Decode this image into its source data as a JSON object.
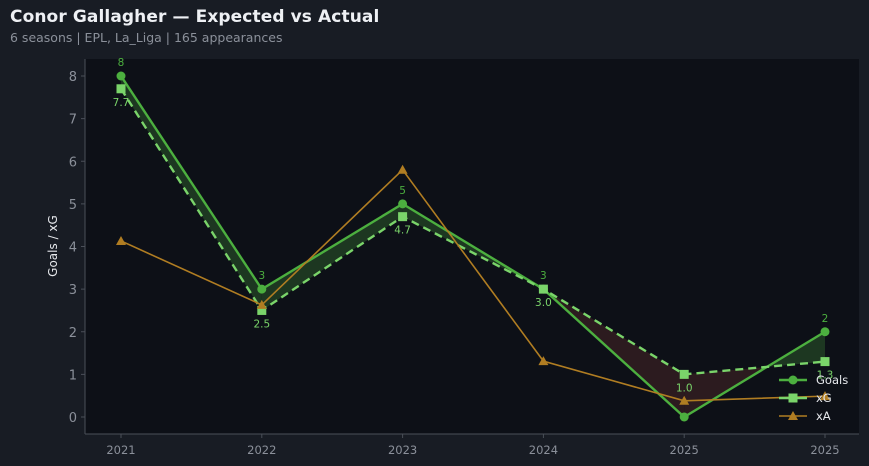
{
  "header": {
    "title": "Conor Gallagher — Expected vs Actual",
    "subtitle": "6 seasons | EPL, La_Liga | 165 appearances"
  },
  "colors": {
    "background": "#181c24",
    "plot_background": "#0d1017",
    "goals": "#4caf3f",
    "xg": "#7ad46a",
    "xa": "#b07d22",
    "fill_over": "#1f3a22",
    "fill_under": "#2e1c20",
    "axis": "#4a4f58",
    "tick_text": "#8b909a"
  },
  "chart_data": {
    "type": "line",
    "title": "Conor Gallagher — Expected vs Actual",
    "subtitle": "6 seasons | EPL, La_Liga | 165 appearances",
    "xlabel": "",
    "ylabel": "Goals / xG",
    "categories": [
      "2021",
      "2022",
      "2023",
      "2024",
      "2025",
      "2025"
    ],
    "ylim": [
      -0.4,
      8.4
    ],
    "yticks": [
      0,
      1,
      2,
      3,
      4,
      5,
      6,
      7,
      8
    ],
    "grid": false,
    "legend_position": "lower right",
    "series": [
      {
        "name": "Goals",
        "values": [
          8,
          3,
          5,
          3,
          0,
          2
        ],
        "marker": "circle",
        "style": "solid",
        "labels": [
          "8",
          "3",
          "5",
          "3",
          "0",
          "2"
        ]
      },
      {
        "name": "xG",
        "values": [
          7.7,
          2.5,
          4.7,
          3.0,
          1.0,
          1.3
        ],
        "marker": "square",
        "style": "dashed",
        "labels": [
          "7.7",
          "2.5",
          "4.7",
          "3.0",
          "1.0",
          "1.3"
        ]
      },
      {
        "name": "xA",
        "values": [
          4.13,
          2.63,
          5.8,
          1.31,
          0.38,
          0.49
        ],
        "marker": "triangle",
        "style": "solid"
      }
    ],
    "annotations": "Shaded region between Goals and xG: green where Goals > xG, red where Goals < xG"
  },
  "legend": {
    "items": [
      {
        "label": "Goals"
      },
      {
        "label": "xG"
      },
      {
        "label": "xA"
      }
    ]
  }
}
